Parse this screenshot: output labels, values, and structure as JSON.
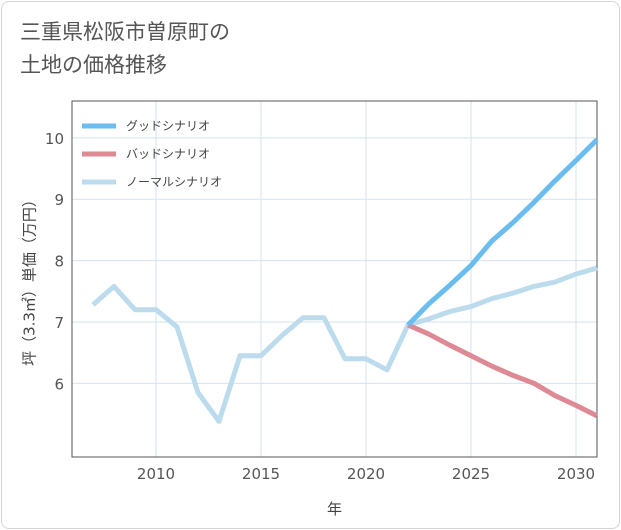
{
  "title_lines": [
    "三重県松阪市曽原町の",
    "土地の価格推移"
  ],
  "chart_data": {
    "type": "line",
    "xlabel": "年",
    "ylabel": "坪（3.3㎡）単価（万円）",
    "xlim": [
      2006,
      2031
    ],
    "ylim": [
      4.8,
      10.6
    ],
    "xticks": [
      2010,
      2015,
      2020,
      2025,
      2030
    ],
    "yticks": [
      6,
      7,
      8,
      9,
      10
    ],
    "grid": true,
    "legend_position": "top-left",
    "series": [
      {
        "name": "グッドシナリオ",
        "color": "#6bbcef",
        "x": [
          2022,
          2023,
          2024,
          2025,
          2026,
          2027,
          2028,
          2029,
          2030,
          2031
        ],
        "values": [
          6.95,
          7.3,
          7.6,
          7.92,
          8.32,
          8.62,
          8.95,
          9.3,
          9.63,
          9.97
        ]
      },
      {
        "name": "バッドシナリオ",
        "color": "#de8a94",
        "x": [
          2022,
          2023,
          2024,
          2025,
          2026,
          2027,
          2028,
          2029,
          2030,
          2031
        ],
        "values": [
          6.95,
          6.8,
          6.62,
          6.45,
          6.28,
          6.13,
          6.0,
          5.8,
          5.64,
          5.47
        ]
      },
      {
        "name": "ノーマルシナリオ",
        "color": "#bcdcee",
        "x": [
          2007,
          2008,
          2009,
          2010,
          2011,
          2012,
          2013,
          2014,
          2015,
          2016,
          2017,
          2018,
          2019,
          2020,
          2021,
          2022,
          2023,
          2024,
          2025,
          2026,
          2027,
          2028,
          2029,
          2030,
          2031
        ],
        "values": [
          7.28,
          7.58,
          7.2,
          7.2,
          6.92,
          5.85,
          5.38,
          6.45,
          6.45,
          6.78,
          7.07,
          7.07,
          6.4,
          6.4,
          6.22,
          6.95,
          7.05,
          7.17,
          7.25,
          7.38,
          7.47,
          7.58,
          7.65,
          7.78,
          7.88
        ]
      }
    ]
  }
}
